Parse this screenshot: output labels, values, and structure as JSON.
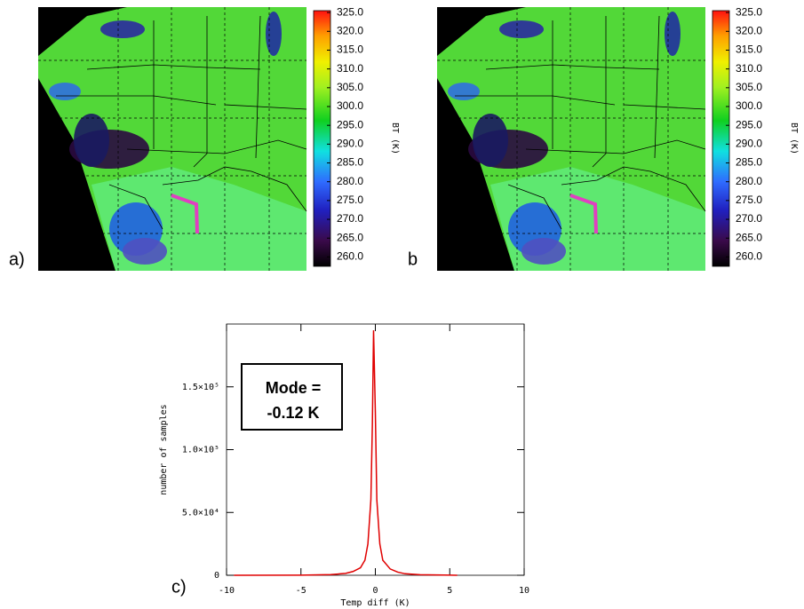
{
  "chart_data": [
    {
      "type": "map",
      "panel_label": "a)",
      "colorbar": {
        "label": "BT (K)",
        "lim": [
          257.5,
          325.5
        ],
        "ticks": [
          {
            "value": 325,
            "label": "325.0"
          },
          {
            "value": 320,
            "label": "320.0"
          },
          {
            "value": 315,
            "label": "315.0"
          },
          {
            "value": 310,
            "label": "310.0"
          },
          {
            "value": 305,
            "label": "305.0"
          },
          {
            "value": 300,
            "label": "300.0"
          },
          {
            "value": 295,
            "label": "295.0"
          },
          {
            "value": 290,
            "label": "290.0"
          },
          {
            "value": 285,
            "label": "285.0"
          },
          {
            "value": 280,
            "label": "280.0"
          },
          {
            "value": 275,
            "label": "275.0"
          },
          {
            "value": 270,
            "label": "270.0"
          },
          {
            "value": 265,
            "label": "265.0"
          },
          {
            "value": 260,
            "label": "260.0"
          }
        ]
      }
    },
    {
      "type": "map",
      "panel_label": "b",
      "colorbar": {
        "label": "BT (K)",
        "lim": [
          257.5,
          325.5
        ],
        "ticks": [
          {
            "value": 325,
            "label": "325.0"
          },
          {
            "value": 320,
            "label": "320.0"
          },
          {
            "value": 315,
            "label": "315.0"
          },
          {
            "value": 310,
            "label": "310.0"
          },
          {
            "value": 305,
            "label": "305.0"
          },
          {
            "value": 300,
            "label": "300.0"
          },
          {
            "value": 295,
            "label": "295.0"
          },
          {
            "value": 290,
            "label": "290.0"
          },
          {
            "value": 285,
            "label": "285.0"
          },
          {
            "value": 280,
            "label": "280.0"
          },
          {
            "value": 275,
            "label": "275.0"
          },
          {
            "value": 270,
            "label": "270.0"
          },
          {
            "value": 265,
            "label": "265.0"
          },
          {
            "value": 260,
            "label": "260.0"
          }
        ]
      }
    },
    {
      "type": "line",
      "panel_label": "c)",
      "x_label": "Temp diff (K)",
      "y_label": "number of samples",
      "annotation": [
        "Mode =",
        "-0.12 K"
      ],
      "color": "#e00000",
      "x": [
        -9.5,
        -5,
        -3,
        -2,
        -1.5,
        -1,
        -0.7,
        -0.5,
        -0.3,
        -0.2,
        -0.12,
        0,
        0.1,
        0.3,
        0.5,
        1,
        1.5,
        2,
        3,
        5.5
      ],
      "values": [
        0,
        100,
        500,
        1500,
        3000,
        6000,
        12000,
        25000,
        60000,
        120000,
        195000,
        130000,
        60000,
        25000,
        12000,
        5000,
        2500,
        1200,
        400,
        0
      ],
      "xlim": [
        -10,
        10
      ],
      "xticks": [
        -10,
        -5,
        0,
        5,
        10
      ],
      "ylim": [
        0,
        200000
      ],
      "yticks": [
        0,
        {
          "value": 50000,
          "label": "5.0×10⁴"
        },
        {
          "value": 100000,
          "label": "1.0×10⁵"
        },
        {
          "value": 150000,
          "label": "1.5×10⁵"
        }
      ]
    }
  ]
}
